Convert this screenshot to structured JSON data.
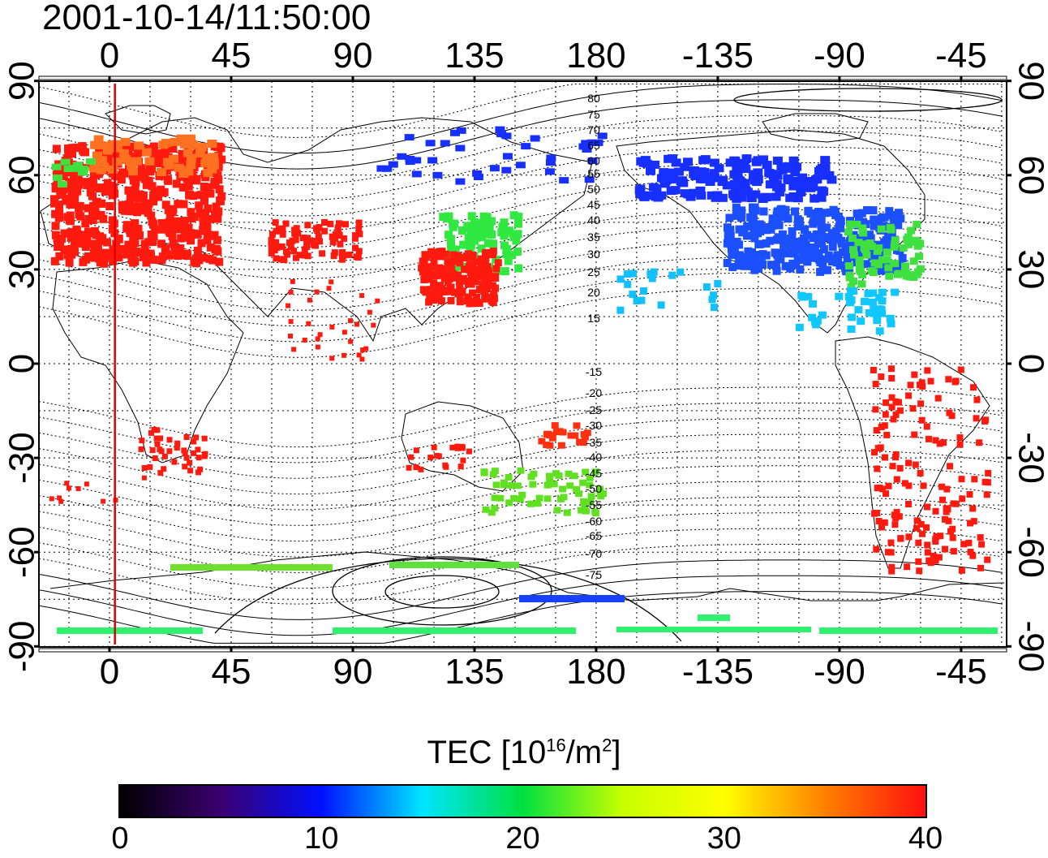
{
  "title": "2001-10-14/11:50:00",
  "map": {
    "top_lon_labels": [
      "0",
      "45",
      "90",
      "135",
      "180",
      "-135",
      "-90",
      "-45"
    ],
    "bottom_lon_labels": [
      "0",
      "45",
      "90",
      "135",
      "180",
      "-135",
      "-90",
      "-45"
    ],
    "left_lat_labels": [
      "90",
      "60",
      "30",
      "0",
      "-30",
      "-60",
      "-90"
    ],
    "right_lat_labels": [
      "90",
      "60",
      "30",
      "0",
      "-30",
      "-60",
      "-90"
    ],
    "contour_labels_north": [
      "80",
      "75",
      "70",
      "65",
      "60",
      "55",
      "50",
      "45",
      "40",
      "35",
      "30",
      "25",
      "20",
      "15"
    ],
    "contour_labels_south": [
      "-15",
      "-20",
      "-25",
      "-30",
      "-35",
      "-40",
      "-45",
      "-50",
      "-55",
      "-60",
      "-65",
      "-70",
      "-75"
    ],
    "terminator_longitude": 2,
    "colors": {
      "terminator": "#e00000",
      "high_tec": "#ff1a10",
      "low_tec": "#2040ff"
    }
  },
  "colorbar": {
    "label_main": "TEC  [10",
    "label_exp": "16",
    "label_unit": "/m",
    "label_exp2": "2",
    "label_close": "]",
    "ticks": [
      "0",
      "10",
      "20",
      "30",
      "40"
    ],
    "min": 0,
    "max": 40,
    "colors": [
      "#000000",
      "#3a0070",
      "#0010ff",
      "#00e5ff",
      "#00e040",
      "#c8ff00",
      "#ffff00",
      "#ff8000",
      "#ff1010"
    ]
  }
}
